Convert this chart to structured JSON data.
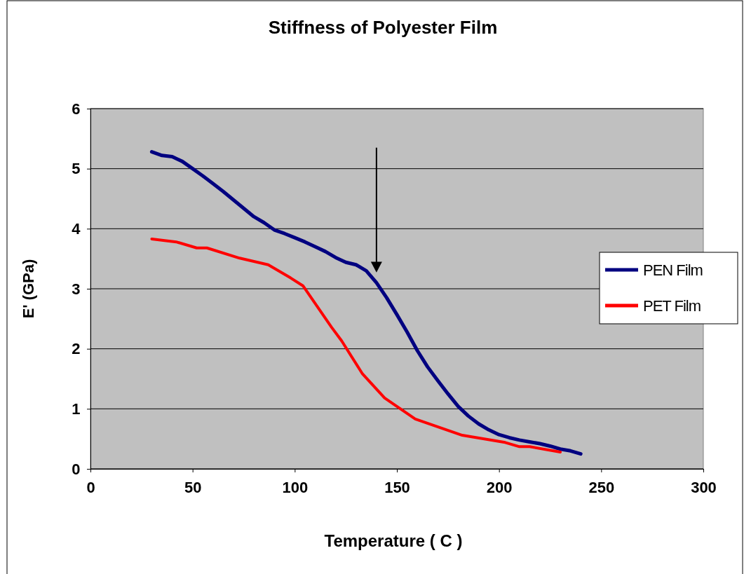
{
  "chart_data": {
    "type": "line",
    "title": "Stiffness of Polyester Film",
    "xlabel": "Temperature ( C )",
    "ylabel": "E'  (GPa)",
    "xlim": [
      0,
      300
    ],
    "xticks": [
      0,
      50,
      100,
      150,
      200,
      250,
      300
    ],
    "ylim": [
      0,
      6
    ],
    "yticks": [
      0,
      1,
      2,
      3,
      4,
      5,
      6
    ],
    "grid": "y",
    "legend": "right",
    "marker": "none",
    "line_style": "solid",
    "series": [
      {
        "name": "PEN Film",
        "color": "#000080",
        "x": [
          30,
          35,
          40,
          45,
          50,
          55,
          60,
          65,
          70,
          75,
          80,
          85,
          90,
          95,
          100,
          105,
          110,
          115,
          120,
          125,
          130,
          135,
          140,
          145,
          150,
          155,
          160,
          165,
          170,
          175,
          180,
          185,
          190,
          195,
          200,
          205,
          210,
          215,
          220,
          225,
          230,
          235,
          240
        ],
        "values": [
          5.28,
          5.22,
          5.2,
          5.12,
          5.0,
          4.88,
          4.75,
          4.62,
          4.48,
          4.34,
          4.2,
          4.1,
          3.98,
          3.92,
          3.85,
          3.78,
          3.7,
          3.62,
          3.52,
          3.44,
          3.4,
          3.3,
          3.1,
          2.85,
          2.57,
          2.28,
          1.97,
          1.7,
          1.47,
          1.25,
          1.04,
          0.88,
          0.75,
          0.65,
          0.57,
          0.52,
          0.48,
          0.45,
          0.42,
          0.38,
          0.33,
          0.3,
          0.25
        ]
      },
      {
        "name": "PET Film",
        "color": "#ff0000",
        "x": [
          30,
          42,
          52,
          57,
          73,
          87,
          98,
          104,
          118,
          123,
          133,
          144,
          159,
          182,
          203,
          210,
          215,
          230
        ],
        "values": [
          3.83,
          3.78,
          3.68,
          3.68,
          3.51,
          3.4,
          3.18,
          3.05,
          2.36,
          2.13,
          1.59,
          1.18,
          0.83,
          0.56,
          0.44,
          0.37,
          0.37,
          0.28
        ]
      }
    ]
  }
}
